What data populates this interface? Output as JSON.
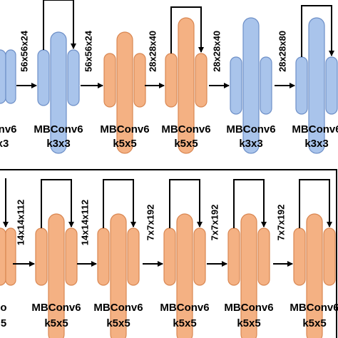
{
  "top": {
    "cropped": [
      "onv6",
      "x3"
    ],
    "dims": [
      "56x56x24",
      "56x56x24",
      "28x28x40",
      "28x28x40",
      "28x28x80"
    ],
    "blocks": [
      {
        "name": "MBConv6",
        "kernel": "k3x3"
      },
      {
        "name": "MBConv6",
        "kernel": "k5x5"
      },
      {
        "name": "MBConv6",
        "kernel": "k5x5"
      },
      {
        "name": "MBConv6",
        "kernel": "k3x3"
      },
      {
        "name": "MBConv6",
        "kernel": "k3x3"
      }
    ]
  },
  "bottom": {
    "cropped": [
      "o",
      "5"
    ],
    "dims": [
      "14x14x112",
      "14x14x112",
      "7x7x192",
      "7x7x192",
      "7x7x192"
    ],
    "blocks": [
      {
        "name": "MBConv6",
        "kernel": "k5x5"
      },
      {
        "name": "MBConv6",
        "kernel": "k5x5"
      },
      {
        "name": "MBConv6",
        "kernel": "k5x5"
      },
      {
        "name": "MBConv6",
        "kernel": "k5x5"
      },
      {
        "name": "MBConv6",
        "kernel": "k5x5"
      }
    ]
  }
}
